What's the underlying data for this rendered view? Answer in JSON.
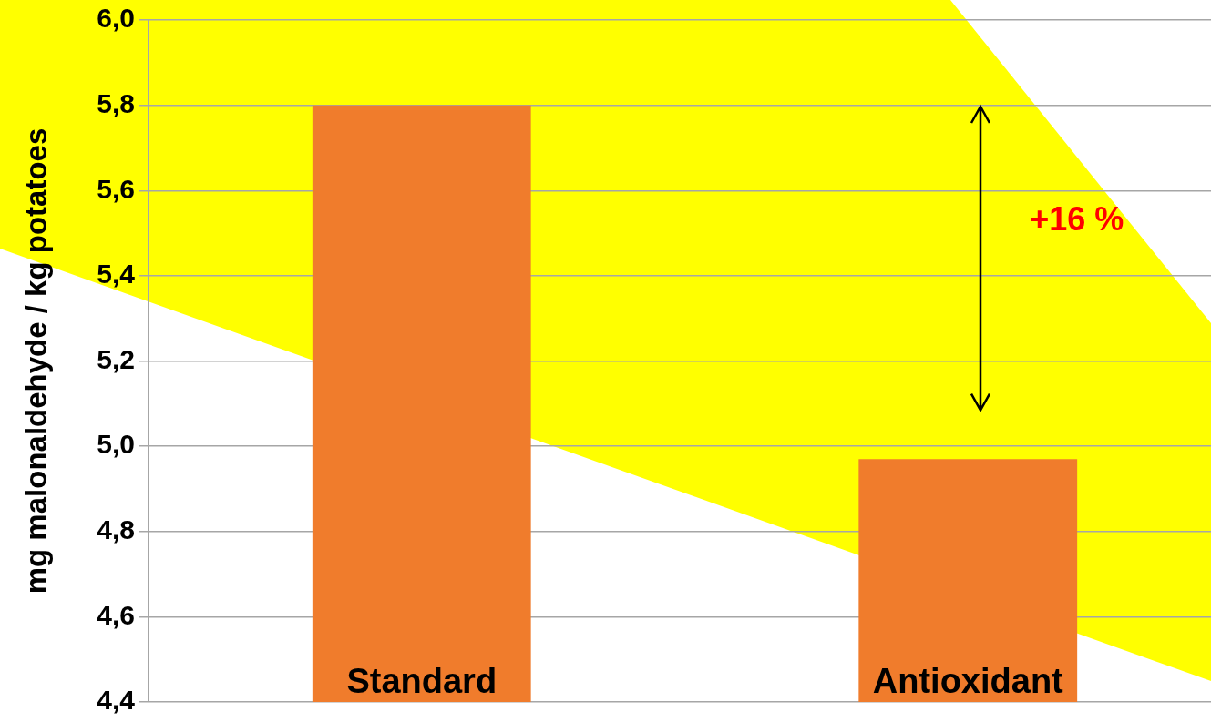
{
  "chart_data": {
    "type": "bar",
    "ylabel": "mg malonaldehyde / kg potatoes",
    "categories": [
      "Standard",
      "Antioxidant"
    ],
    "values": [
      5.8,
      4.97
    ],
    "color": "#f07c2c",
    "ylim": [
      4.4,
      6.0
    ],
    "yticks": [
      {
        "value": 4.4,
        "label": "4,4"
      },
      {
        "value": 4.6,
        "label": "4,6"
      },
      {
        "value": 4.8,
        "label": "4,8"
      },
      {
        "value": 5.0,
        "label": "5,0"
      },
      {
        "value": 5.2,
        "label": "5,2"
      },
      {
        "value": 5.4,
        "label": "5,4"
      },
      {
        "value": 5.6,
        "label": "5,6"
      },
      {
        "value": 5.8,
        "label": "5,8"
      },
      {
        "value": 6.0,
        "label": "6,0"
      }
    ],
    "grid": "y",
    "annotations": [
      "+16 %"
    ]
  }
}
